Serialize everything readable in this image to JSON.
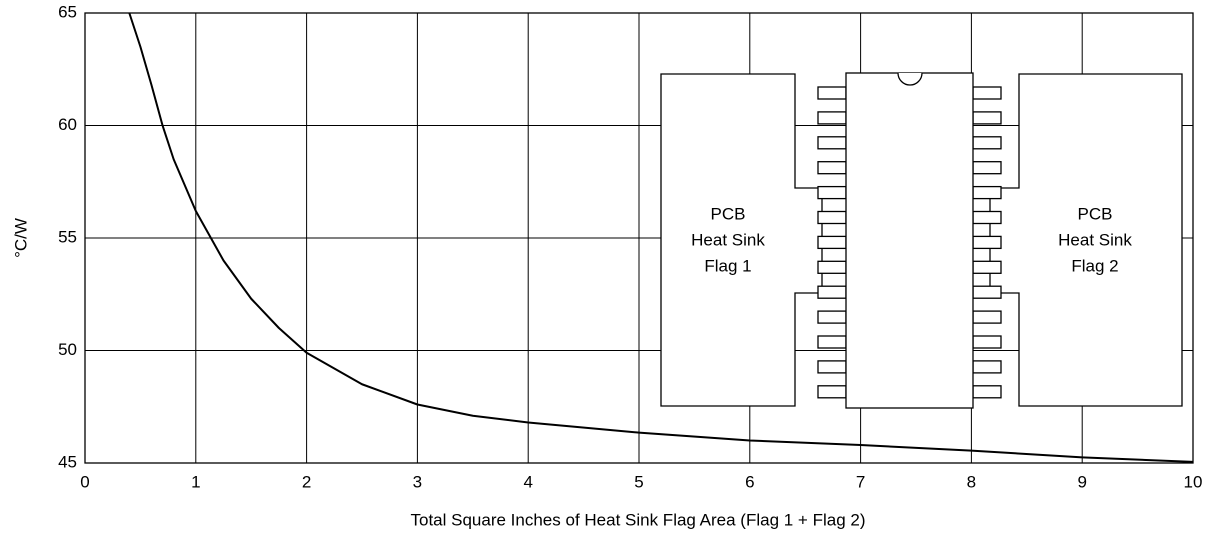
{
  "chart_data": {
    "type": "line",
    "xlabel": "Total Square Inches of Heat Sink Flag Area (Flag 1 + Flag 2)",
    "ylabel": "°C/W",
    "x": [
      0.4,
      0.5,
      0.6,
      0.7,
      0.8,
      1.0,
      1.25,
      1.5,
      1.75,
      2,
      2.5,
      3,
      3.5,
      4,
      5,
      6,
      7,
      8,
      9,
      10
    ],
    "values": [
      65,
      63.5,
      61.8,
      60,
      58.5,
      56.2,
      54,
      52.3,
      51,
      49.9,
      48.5,
      47.6,
      47.1,
      46.8,
      46.35,
      46.0,
      45.8,
      45.55,
      45.25,
      45.05
    ],
    "color": "#000000",
    "xlim": [
      0,
      10
    ],
    "xticks": [
      0,
      1,
      2,
      3,
      4,
      5,
      6,
      7,
      8,
      9,
      10
    ],
    "ylim": [
      45,
      65
    ],
    "yticks": [
      45,
      50,
      55,
      60,
      65
    ],
    "grid": true,
    "annotations": [
      [
        "PCB",
        "Heat Sink",
        "Flag 1"
      ],
      [
        "PCB",
        "Heat Sink",
        "Flag 2"
      ]
    ]
  }
}
